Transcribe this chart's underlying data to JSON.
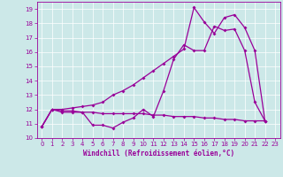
{
  "xlabel": "Windchill (Refroidissement éolien,°C)",
  "background_color": "#cce8e8",
  "line_color": "#990099",
  "ylim": [
    10,
    19.5
  ],
  "xlim": [
    -0.5,
    23.5
  ],
  "yticks": [
    10,
    11,
    12,
    13,
    14,
    15,
    16,
    17,
    18,
    19
  ],
  "xticks": [
    0,
    1,
    2,
    3,
    4,
    5,
    6,
    7,
    8,
    9,
    10,
    11,
    12,
    13,
    14,
    15,
    16,
    17,
    18,
    19,
    20,
    21,
    22,
    23
  ],
  "x_values": [
    0,
    1,
    2,
    3,
    4,
    5,
    6,
    7,
    8,
    9,
    10,
    11,
    12,
    13,
    14,
    15,
    16,
    17,
    18,
    19,
    20,
    21,
    22
  ],
  "series1": [
    10.8,
    12.0,
    11.8,
    11.8,
    11.8,
    10.9,
    10.9,
    10.7,
    11.1,
    11.4,
    12.0,
    11.5,
    13.3,
    15.5,
    16.5,
    16.1,
    16.1,
    17.8,
    17.5,
    17.6,
    16.1,
    12.5,
    11.2
  ],
  "series2": [
    10.8,
    12.0,
    11.9,
    11.9,
    11.8,
    11.8,
    11.7,
    11.7,
    11.7,
    11.7,
    11.7,
    11.6,
    11.6,
    11.5,
    11.5,
    11.5,
    11.4,
    11.4,
    11.3,
    11.3,
    11.2,
    11.2,
    11.2
  ],
  "series3": [
    10.8,
    12.0,
    12.0,
    12.1,
    12.2,
    12.3,
    12.5,
    13.0,
    13.3,
    13.7,
    14.2,
    14.7,
    15.2,
    15.7,
    16.2,
    19.1,
    18.1,
    17.3,
    18.4,
    18.6,
    17.7,
    16.1,
    11.2
  ]
}
